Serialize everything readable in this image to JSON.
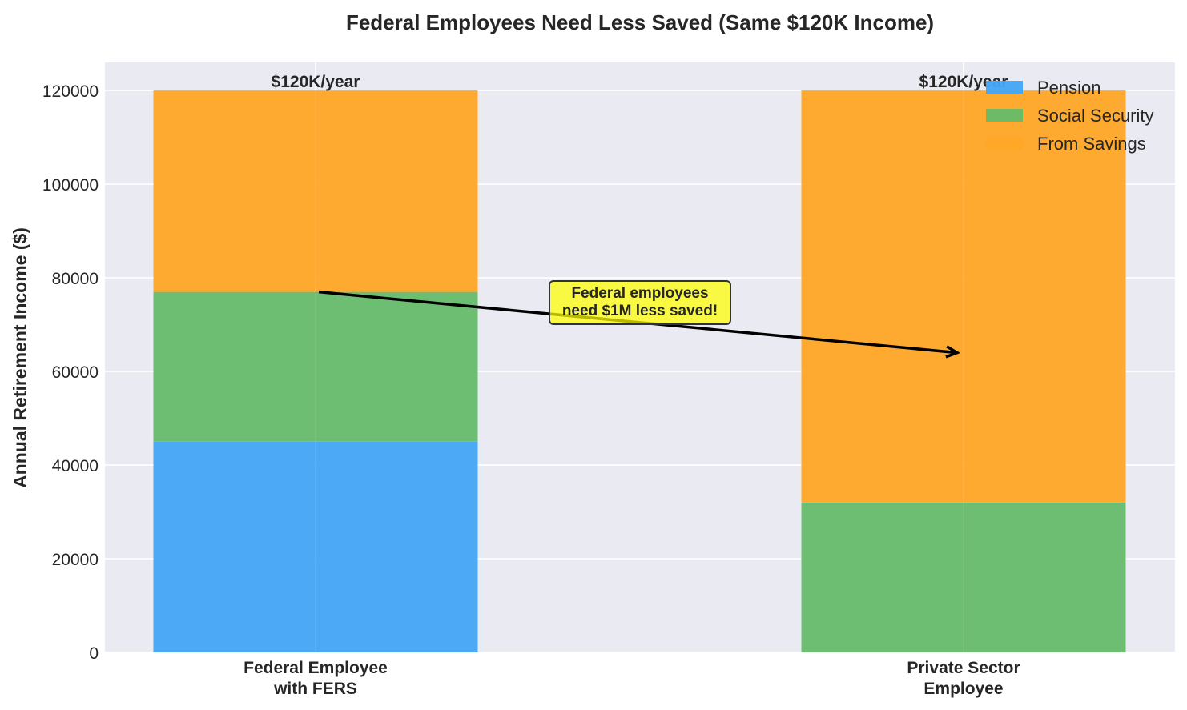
{
  "chart_data": {
    "type": "bar",
    "stacked": true,
    "title": "Federal Employees Need Less Saved (Same $120K Income)",
    "xlabel": "",
    "ylabel": "Annual Retirement Income ($)",
    "categories": [
      "Federal Employee\nwith FERS",
      "Private Sector\nEmployee"
    ],
    "series": [
      {
        "name": "Pension",
        "values": [
          45000,
          0
        ],
        "color": "#42a5f5"
      },
      {
        "name": "Social Security",
        "values": [
          32000,
          32000
        ],
        "color": "#66bb6a"
      },
      {
        "name": "From Savings",
        "values": [
          43000,
          88000
        ],
        "color": "#ffa726"
      }
    ],
    "total_labels": [
      "$120K/year",
      "$120K/year"
    ],
    "ylim": [
      0,
      126000
    ],
    "yticks": [
      0,
      20000,
      40000,
      60000,
      80000,
      100000,
      120000
    ],
    "grid": true,
    "legend_position": "top-right",
    "annotation": {
      "text": "Federal employees\nneed $1M less saved!",
      "from": {
        "category": 0,
        "y": 77000
      },
      "to": {
        "category": 1,
        "y": 64000
      }
    }
  }
}
